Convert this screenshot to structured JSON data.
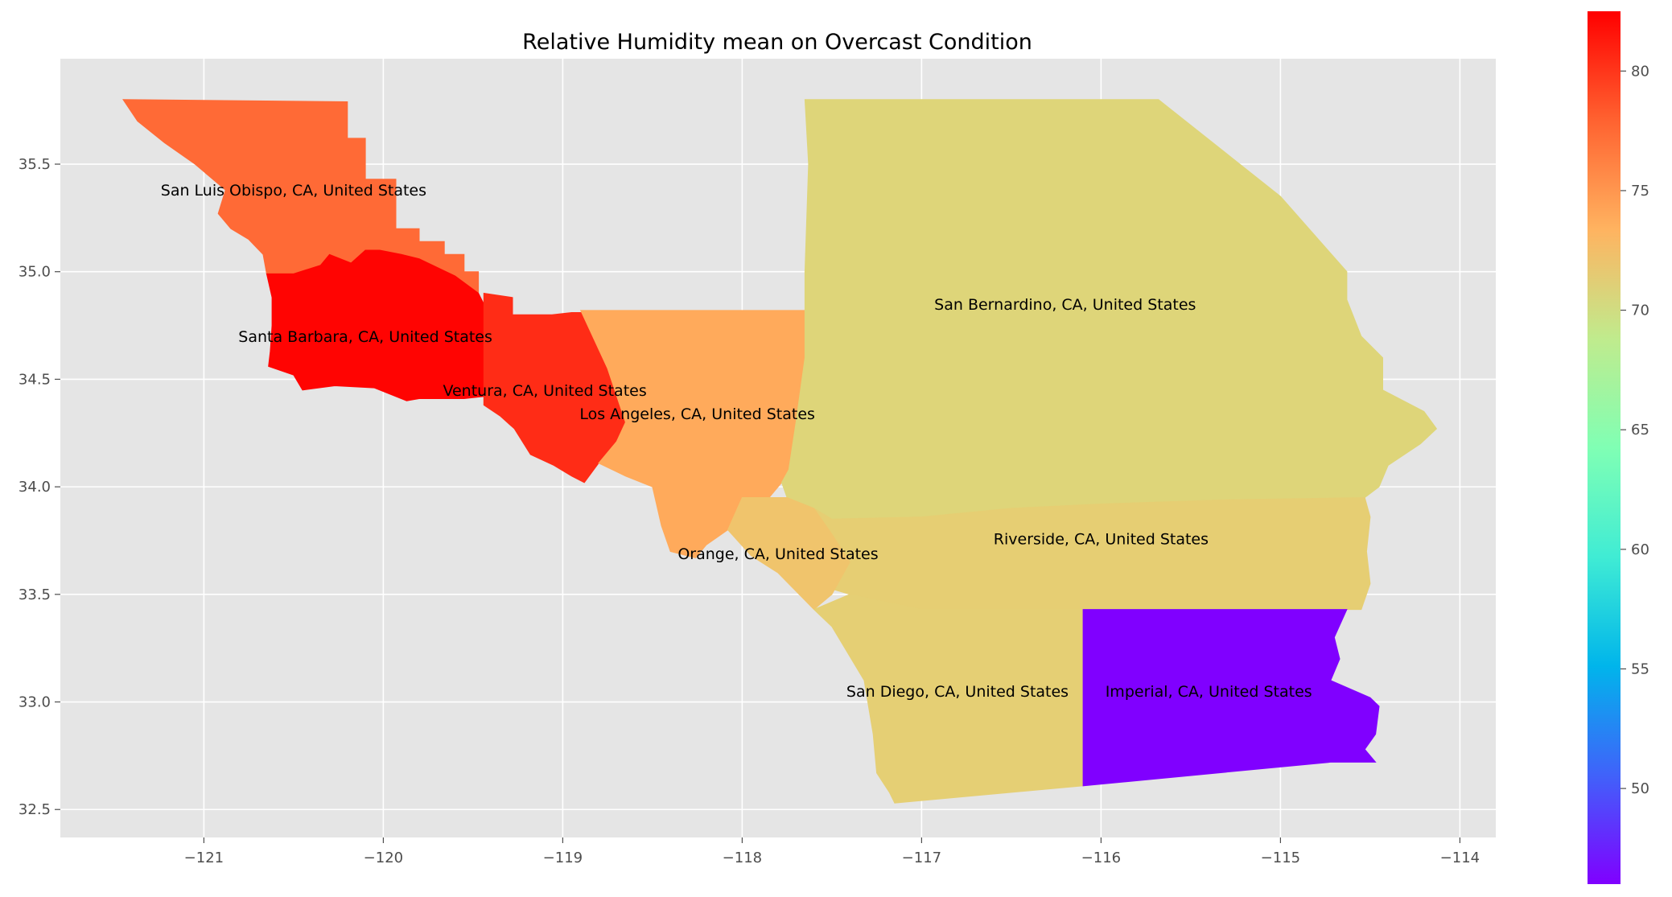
{
  "chart_data": {
    "type": "choropleth",
    "title": "Relative Humidity mean on Overcast Condition",
    "xlabel": "",
    "ylabel": "",
    "xlim": [
      -121.8,
      -113.8
    ],
    "ylim": [
      32.37,
      35.99
    ],
    "xticks": [
      -121,
      -120,
      -119,
      -118,
      -117,
      -116,
      -115,
      -114
    ],
    "xtick_labels": [
      "−121",
      "−120",
      "−119",
      "−118",
      "−117",
      "−116",
      "−115",
      "−114"
    ],
    "yticks": [
      32.5,
      33.0,
      33.5,
      34.0,
      34.5,
      35.0,
      35.5
    ],
    "ytick_labels": [
      "32.5",
      "33.0",
      "33.5",
      "34.0",
      "34.5",
      "35.0",
      "35.5"
    ],
    "grid": true,
    "colormap": "rainbow",
    "colorbar": {
      "range": [
        46,
        82.5
      ],
      "ticks": [
        50,
        55,
        60,
        65,
        70,
        75,
        80
      ],
      "tick_labels": [
        "50",
        "55",
        "60",
        "65",
        "70",
        "75",
        "80"
      ]
    },
    "regions": [
      {
        "name": "San Luis Obispo, CA, United States",
        "value": 77.5,
        "label_lon": -120.5,
        "label_lat": 35.38
      },
      {
        "name": "Santa Barbara, CA, United States",
        "value": 82.3,
        "label_lon": -120.1,
        "label_lat": 34.7
      },
      {
        "name": "Ventura, CA, United States",
        "value": 80.5,
        "label_lon": -119.1,
        "label_lat": 34.45
      },
      {
        "name": "Los Angeles, CA, United States",
        "value": 74.0,
        "label_lon": -118.25,
        "label_lat": 34.34
      },
      {
        "name": "San Bernardino, CA, United States",
        "value": 71.0,
        "label_lon": -116.2,
        "label_lat": 34.85
      },
      {
        "name": "Riverside, CA, United States",
        "value": 71.6,
        "label_lon": -116.0,
        "label_lat": 33.76
      },
      {
        "name": "Orange, CA, United States",
        "value": 72.3,
        "label_lon": -117.8,
        "label_lat": 33.69
      },
      {
        "name": "San Diego, CA, United States",
        "value": 71.5,
        "label_lon": -116.8,
        "label_lat": 33.05
      },
      {
        "name": "Imperial, CA, United States",
        "value": 46.0,
        "label_lon": -115.4,
        "label_lat": 33.05
      }
    ],
    "colors": {
      "background": "#e5e5e5",
      "grid": "#ffffff"
    }
  }
}
